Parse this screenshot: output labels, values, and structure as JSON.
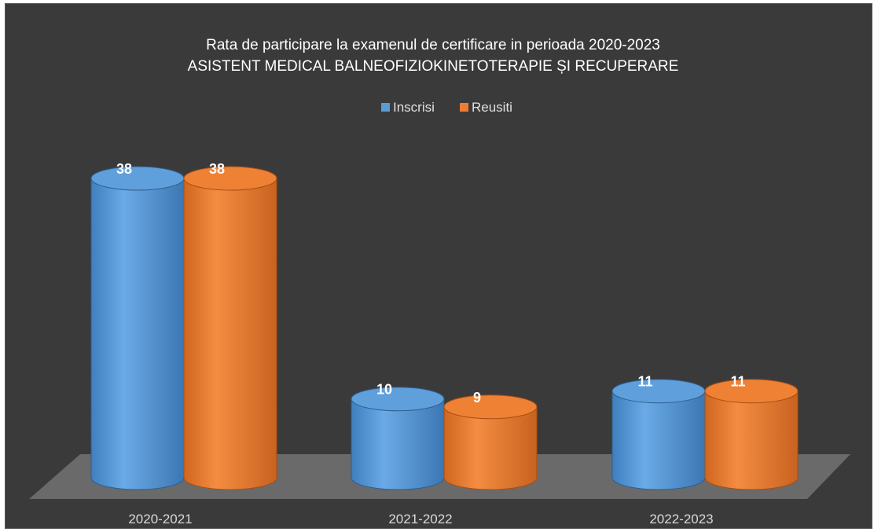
{
  "chart_data": {
    "type": "bar",
    "title": "Rata de participare la examenul de certificare in perioada 2020-2023",
    "subtitle": "ASISTENT MEDICAL BALNEOFIZIOKINETOTERAPIE ȘI RECUPERARE",
    "categories": [
      "2020-2021",
      "2021-2022",
      "2022-2023"
    ],
    "series": [
      {
        "name": "Inscrisi",
        "values": [
          38,
          10,
          11
        ],
        "color": "#5b9bd5"
      },
      {
        "name": "Reusiti",
        "values": [
          38,
          9,
          11
        ],
        "color": "#ed7d31"
      }
    ],
    "legend_position": "top-center",
    "grid": false,
    "ylim": [
      0,
      40
    ],
    "style": "3d-cylinder"
  }
}
